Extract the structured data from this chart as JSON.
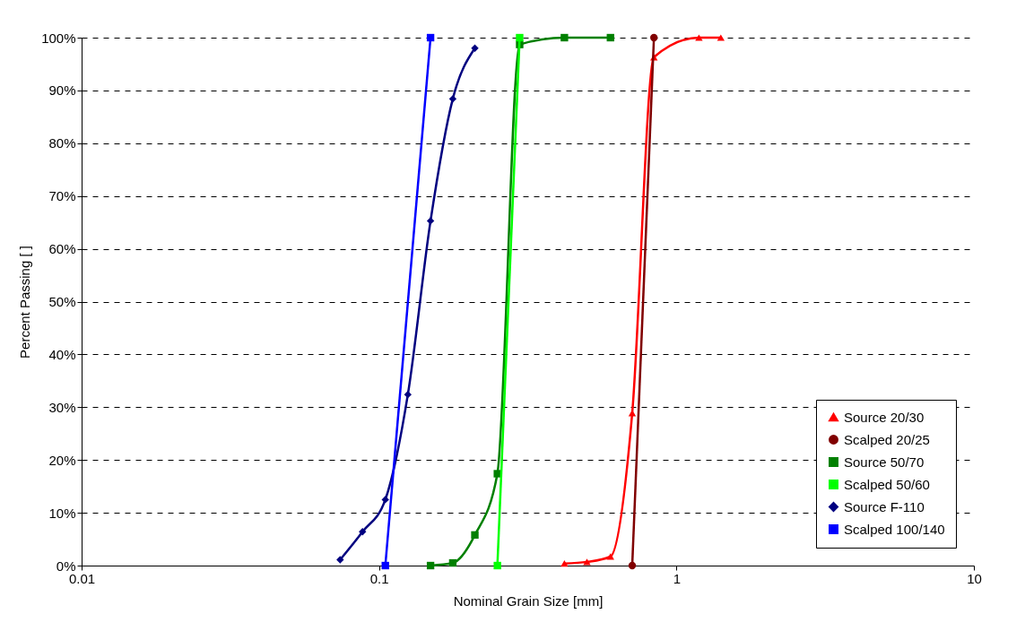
{
  "chart_data": {
    "type": "line",
    "xlabel": "Nominal Grain Size [mm]",
    "ylabel": "Percent Passing [ ]",
    "log": "x",
    "xlim": [
      0.01,
      10
    ],
    "xticks": [
      0.01,
      0.1,
      1,
      10
    ],
    "ylim": [
      0,
      100
    ],
    "yticks": [
      {
        "value": 0,
        "label": "0%"
      },
      {
        "value": 10,
        "label": "10%"
      },
      {
        "value": 20,
        "label": "20%"
      },
      {
        "value": 30,
        "label": "30%"
      },
      {
        "value": 40,
        "label": "40%"
      },
      {
        "value": 50,
        "label": "50%"
      },
      {
        "value": 60,
        "label": "60%"
      },
      {
        "value": 70,
        "label": "70%"
      },
      {
        "value": 80,
        "label": "80%"
      },
      {
        "value": 90,
        "label": "90%"
      },
      {
        "value": 100,
        "label": "100%"
      }
    ],
    "grid": "y",
    "legend": "bottom right",
    "series": [
      {
        "name": "Source 20/30",
        "color": "#ff0000",
        "marker": "triangle",
        "x": [
          0.42,
          0.5,
          0.6,
          0.71,
          0.84,
          1.19,
          1.41
        ],
        "values": [
          0.4,
          0.7,
          1.7,
          28.9,
          96.3,
          100,
          100
        ]
      },
      {
        "name": "Scalped 20/25",
        "color": "#800000",
        "marker": "circle",
        "x": [
          0.71,
          0.84
        ],
        "values": [
          0,
          100
        ]
      },
      {
        "name": "Source 50/70",
        "color": "#008000",
        "marker": "square",
        "x": [
          0.149,
          0.177,
          0.21,
          0.25,
          0.297,
          0.42,
          0.6
        ],
        "values": [
          0,
          0.5,
          5.8,
          17.4,
          98.7,
          100,
          100
        ]
      },
      {
        "name": "Scalped 50/60",
        "color": "#00ff00",
        "marker": "square",
        "x": [
          0.25,
          0.297
        ],
        "values": [
          0,
          100
        ]
      },
      {
        "name": "Source F-110",
        "color": "#000080",
        "marker": "diamond",
        "x": [
          0.074,
          0.088,
          0.105,
          0.125,
          0.149,
          0.177,
          0.21
        ],
        "values": [
          1.1,
          6.4,
          12.5,
          32.4,
          65.3,
          88.4,
          98.0
        ]
      },
      {
        "name": "Scalped 100/140",
        "color": "#0000ff",
        "marker": "square",
        "x": [
          0.105,
          0.149
        ],
        "values": [
          0,
          100
        ]
      }
    ]
  }
}
